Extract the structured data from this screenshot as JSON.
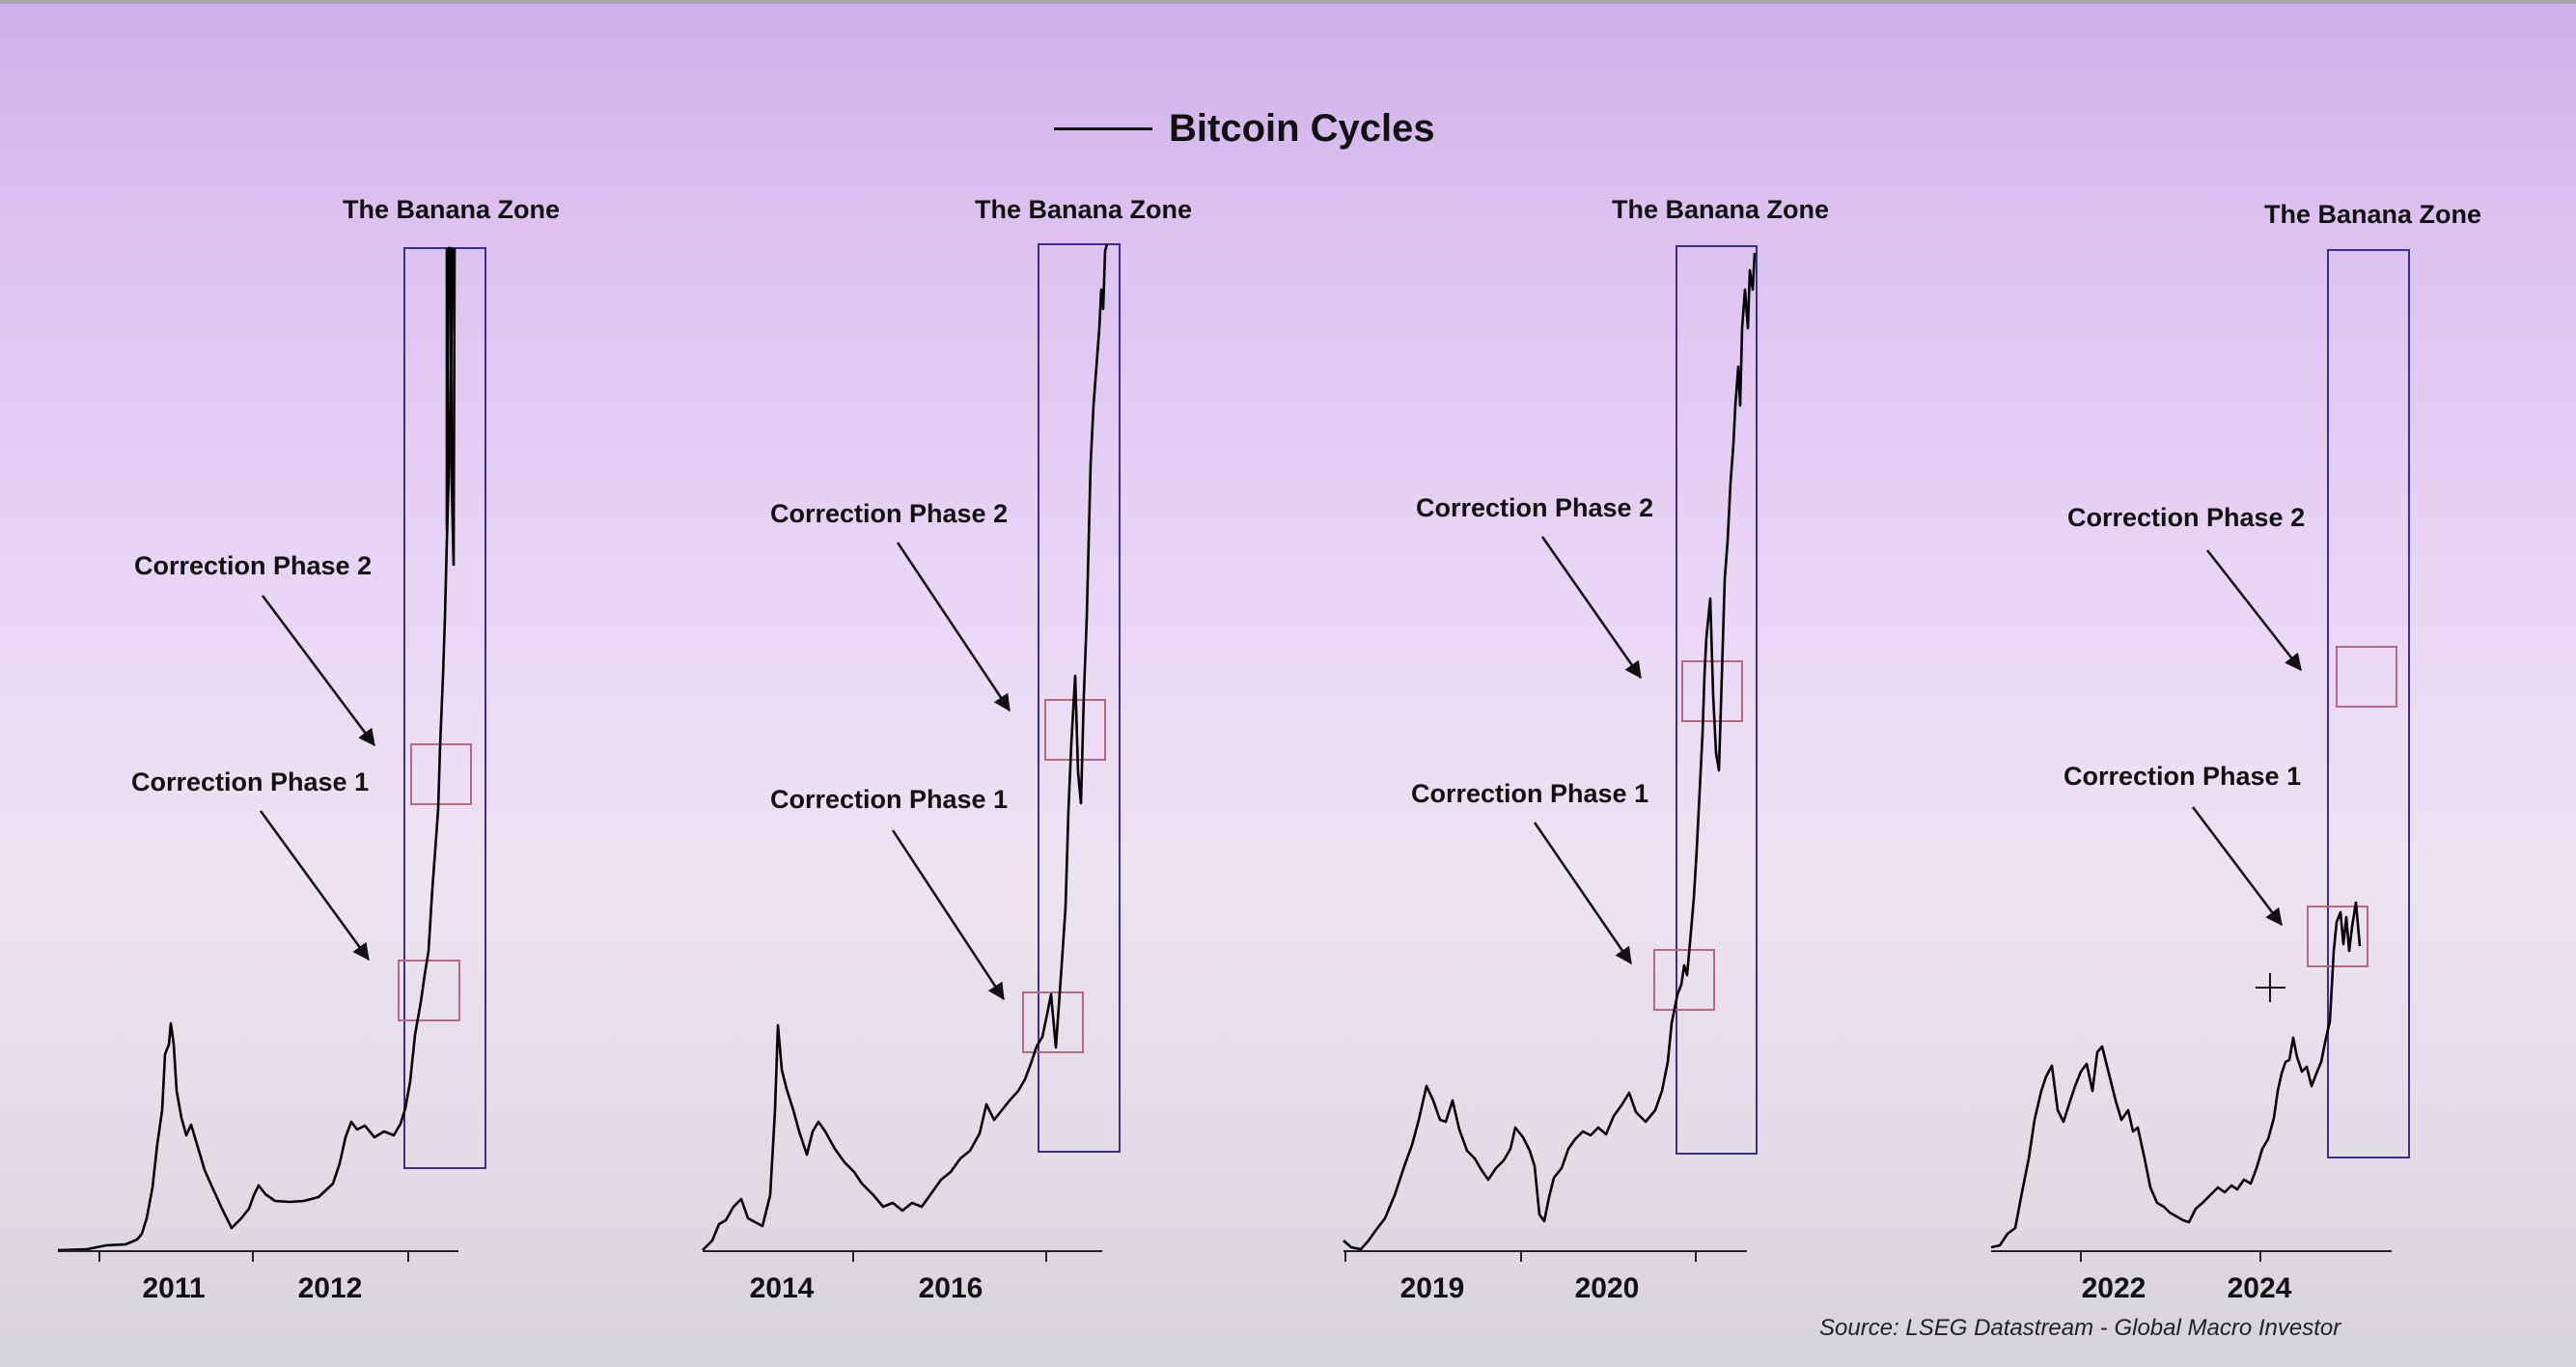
{
  "legend": {
    "label": "Bitcoin Cycles"
  },
  "source": "Source: LSEG Datastream - Global Macro Investor",
  "colors": {
    "banana_zone_box": "#3a2f8c",
    "correction_box": "#b56a80",
    "series_line": "#000000"
  },
  "chart_data": [
    {
      "type": "line",
      "series_name": "Bitcoin Cycles",
      "x_tick_labels": [
        "2011",
        "2012"
      ],
      "banana_zone_label": "The Banana Zone",
      "correction_labels": [
        "Correction Phase 2",
        "Correction Phase 1"
      ]
    },
    {
      "type": "line",
      "series_name": "Bitcoin Cycles",
      "x_tick_labels": [
        "2014",
        "2016"
      ],
      "banana_zone_label": "The Banana Zone",
      "correction_labels": [
        "Correction Phase 2",
        "Correction Phase 1"
      ]
    },
    {
      "type": "line",
      "series_name": "Bitcoin Cycles",
      "x_tick_labels": [
        "2019",
        "2020"
      ],
      "banana_zone_label": "The Banana Zone",
      "correction_labels": [
        "Correction Phase 2",
        "Correction Phase 1"
      ]
    },
    {
      "type": "line",
      "series_name": "Bitcoin Cycles",
      "x_tick_labels": [
        "2022",
        "2024"
      ],
      "banana_zone_label": "The Banana Zone",
      "correction_labels": [
        "Correction Phase 2",
        "Correction Phase 1"
      ]
    }
  ]
}
